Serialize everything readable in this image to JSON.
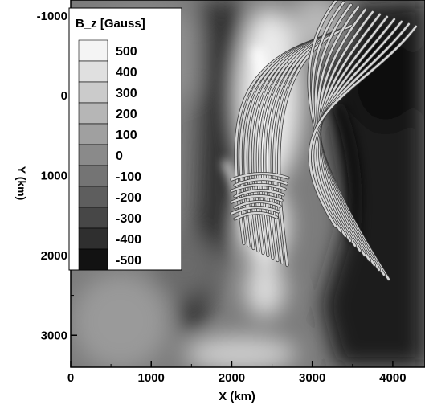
{
  "chart_data": {
    "type": "heatmap",
    "description_visible": "magnetogram with overlaid field lines",
    "title": "",
    "xlabel": "X (km)",
    "ylabel": "Y (km)",
    "xlim": [
      0,
      4400
    ],
    "ylim": [
      3400,
      -1200
    ],
    "x_ticks": [
      0,
      1000,
      2000,
      3000,
      4000
    ],
    "x_tick_labels": [
      "0",
      "1000",
      "2000",
      "3000",
      "4000"
    ],
    "y_ticks": [
      -1000,
      0,
      1000,
      2000,
      3000
    ],
    "y_tick_labels": [
      "-1000",
      "0",
      "1000",
      "2000",
      "3000"
    ],
    "grid": false,
    "colorbar": {
      "title": "B_z [Gauss]",
      "levels": [
        500,
        400,
        300,
        200,
        100,
        0,
        -100,
        -200,
        -300,
        -400,
        -500
      ],
      "labels": [
        "500",
        "400",
        "300",
        "200",
        "100",
        "0",
        "-100",
        "-200",
        "-300",
        "-400",
        "-500"
      ],
      "colors": [
        "#f4f4f4",
        "#e0e0e0",
        "#cbcbcb",
        "#b6b6b6",
        "#a0a0a0",
        "#8a8a8a",
        "#747474",
        "#5e5e5e",
        "#474747",
        "#2f2f2f",
        "#121212"
      ],
      "placement": "top-left"
    },
    "field_line_bundles": [
      {
        "name": "",
        "from": [
          2150,
          1850
        ],
        "to": [
          3050,
          -700
        ]
      },
      {
        "name": "",
        "from": [
          3950,
          2300
        ],
        "to": [
          3300,
          -1200
        ]
      },
      {
        "name": "",
        "from": [
          2000,
          1050
        ],
        "to": [
          2700,
          1050
        ]
      }
    ]
  }
}
